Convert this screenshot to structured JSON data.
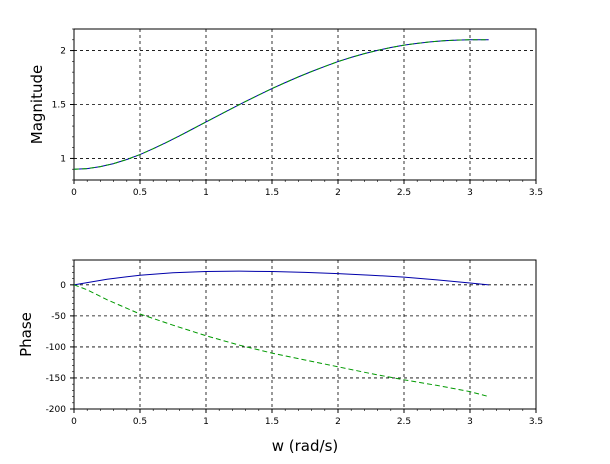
{
  "chart_data": [
    {
      "type": "line",
      "title": "",
      "xlabel": "",
      "ylabel": "Magnitude",
      "xlim": [
        0,
        3.5
      ],
      "ylim": [
        0.8,
        2.2
      ],
      "xticks": [
        0,
        0.5,
        1,
        1.5,
        2,
        2.5,
        3,
        3.5
      ],
      "xtick_labels": [
        "0",
        "0.5",
        "1",
        "1.5",
        "2",
        "2.5",
        "3",
        "3.5"
      ],
      "yticks": [
        1,
        1.5,
        2
      ],
      "ytick_labels": [
        "1",
        "1.5",
        "2"
      ],
      "grid": true,
      "series": [
        {
          "color": "#0000aa",
          "style": "solid",
          "x": [
            0,
            0.1,
            0.2,
            0.3,
            0.4,
            0.5,
            0.6,
            0.7,
            0.8,
            0.9,
            1.0,
            1.1,
            1.2,
            1.3,
            1.4,
            1.5,
            1.6,
            1.7,
            1.8,
            1.9,
            2.0,
            2.1,
            2.2,
            2.3,
            2.4,
            2.5,
            2.6,
            2.7,
            2.8,
            2.9,
            3.0,
            3.1416
          ],
          "values": [
            0.9,
            0.906,
            0.924,
            0.952,
            0.99,
            1.036,
            1.09,
            1.148,
            1.21,
            1.274,
            1.338,
            1.402,
            1.466,
            1.528,
            1.589,
            1.648,
            1.703,
            1.756,
            1.806,
            1.853,
            1.898,
            1.937,
            1.972,
            2.002,
            2.028,
            2.05,
            2.067,
            2.081,
            2.091,
            2.097,
            2.1,
            2.1
          ]
        },
        {
          "color": "#009900",
          "style": "dashed",
          "x": [
            0,
            0.1,
            0.2,
            0.3,
            0.4,
            0.5,
            0.6,
            0.7,
            0.8,
            0.9,
            1.0,
            1.1,
            1.2,
            1.3,
            1.4,
            1.5,
            1.6,
            1.7,
            1.8,
            1.9,
            2.0,
            2.1,
            2.2,
            2.3,
            2.4,
            2.5,
            2.6,
            2.7,
            2.8,
            2.9,
            3.0,
            3.1416
          ],
          "values": [
            0.9,
            0.906,
            0.924,
            0.952,
            0.99,
            1.036,
            1.09,
            1.148,
            1.21,
            1.274,
            1.338,
            1.402,
            1.466,
            1.528,
            1.589,
            1.648,
            1.703,
            1.756,
            1.806,
            1.853,
            1.898,
            1.937,
            1.972,
            2.002,
            2.028,
            2.05,
            2.067,
            2.081,
            2.091,
            2.097,
            2.1,
            2.1
          ]
        }
      ]
    },
    {
      "type": "line",
      "title": "",
      "xlabel": "w (rad/s)",
      "ylabel": "Phase",
      "xlim": [
        0,
        3.5
      ],
      "ylim": [
        -200,
        40
      ],
      "xticks": [
        0,
        0.5,
        1,
        1.5,
        2,
        2.5,
        3,
        3.5
      ],
      "xtick_labels": [
        "0",
        "0.5",
        "1",
        "1.5",
        "2",
        "2.5",
        "3",
        "3.5"
      ],
      "yticks": [
        -200,
        -150,
        -100,
        -50,
        0
      ],
      "ytick_labels": [
        "-200",
        "-150",
        "-100",
        "-50",
        "0"
      ],
      "grid": true,
      "series": [
        {
          "color": "#0000aa",
          "style": "solid",
          "x": [
            0,
            0.25,
            0.5,
            0.75,
            1.0,
            1.25,
            1.5,
            1.75,
            2.0,
            2.25,
            2.5,
            2.75,
            3.0,
            3.1416
          ],
          "values": [
            0,
            9,
            15.5,
            19.5,
            21.5,
            22,
            21.5,
            20,
            18,
            15.5,
            12.5,
            8,
            3,
            0
          ]
        },
        {
          "color": "#009900",
          "style": "dashed",
          "x": [
            0,
            0.1,
            0.25,
            0.5,
            0.75,
            1.0,
            1.25,
            1.5,
            1.75,
            2.0,
            2.25,
            2.5,
            2.75,
            3.0,
            3.1416
          ],
          "values": [
            0,
            -8,
            -24,
            -47,
            -65,
            -82,
            -97,
            -110,
            -121,
            -132,
            -143,
            -153,
            -162,
            -172,
            -180
          ]
        }
      ]
    }
  ]
}
